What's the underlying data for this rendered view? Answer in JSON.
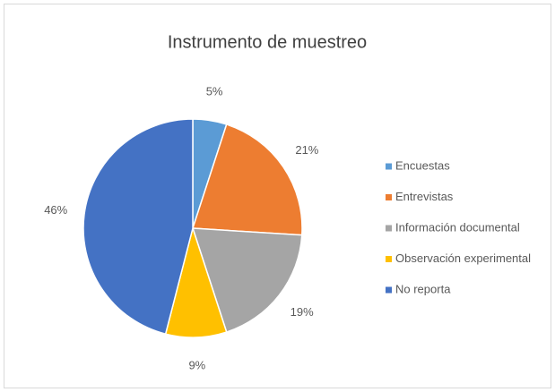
{
  "chart_data": {
    "type": "pie",
    "title": "Instrumento de muestreo",
    "categories": [
      "Encuestas",
      "Entrevistas",
      "Información documental",
      "Observación experimental",
      "No reporta"
    ],
    "values": [
      5,
      21,
      19,
      9,
      46
    ],
    "value_labels": [
      "5%",
      "21%",
      "19%",
      "9%",
      "46%"
    ],
    "colors": [
      "#5b9bd5",
      "#ed7d31",
      "#a5a5a5",
      "#ffc000",
      "#4472c4"
    ],
    "legend": "right"
  }
}
